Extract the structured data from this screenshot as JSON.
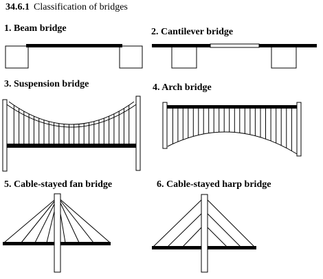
{
  "section": {
    "number": "34.6.1",
    "title": "Classification of bridges"
  },
  "bridges": [
    {
      "label": "1. Beam bridge"
    },
    {
      "label": "2. Cantilever bridge"
    },
    {
      "label": "3. Suspension bridge"
    },
    {
      "label": "4. Arch bridge"
    },
    {
      "label": "5. Cable-stayed fan bridge"
    },
    {
      "label": "6. Cable-stayed harp bridge"
    }
  ]
}
